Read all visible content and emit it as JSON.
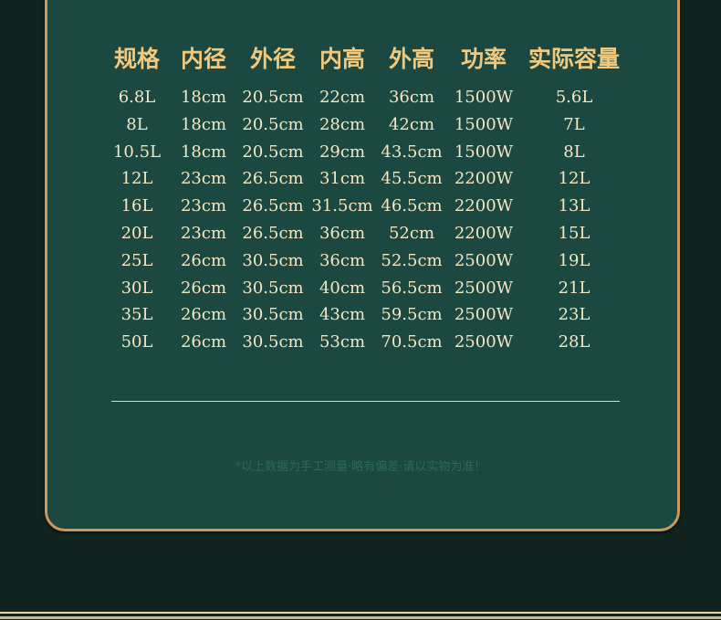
{
  "colors": {
    "background": "#10231f",
    "panel": "#1b4840",
    "border": "#c9995a",
    "header_text": "#f2c97c",
    "body_text": "#f5e6c3",
    "note_text": "#2c6a57"
  },
  "table": {
    "headers": [
      "规格",
      "内径",
      "外径",
      "内高",
      "外高",
      "功率",
      "实际容量"
    ],
    "rows": [
      [
        "6.8L",
        "18cm",
        "20.5cm",
        "22cm",
        "36cm",
        "1500W",
        "5.6L"
      ],
      [
        "8L",
        "18cm",
        "20.5cm",
        "28cm",
        "42cm",
        "1500W",
        "7L"
      ],
      [
        "10.5L",
        "18cm",
        "20.5cm",
        "29cm",
        "43.5cm",
        "1500W",
        "8L"
      ],
      [
        "12L",
        "23cm",
        "26.5cm",
        "31cm",
        "45.5cm",
        "2200W",
        "12L"
      ],
      [
        "16L",
        "23cm",
        "26.5cm",
        "31.5cm",
        "46.5cm",
        "2200W",
        "13L"
      ],
      [
        "20L",
        "23cm",
        "26.5cm",
        "36cm",
        "52cm",
        "2200W",
        "15L"
      ],
      [
        "25L",
        "26cm",
        "30.5cm",
        "36cm",
        "52.5cm",
        "2500W",
        "19L"
      ],
      [
        "30L",
        "26cm",
        "30.5cm",
        "40cm",
        "56.5cm",
        "2500W",
        "21L"
      ],
      [
        "35L",
        "26cm",
        "30.5cm",
        "43cm",
        "59.5cm",
        "2500W",
        "23L"
      ],
      [
        "50L",
        "26cm",
        "30.5cm",
        "53cm",
        "70.5cm",
        "2500W",
        "28L"
      ]
    ]
  },
  "note": "*以上数据为手工测量·略有偏差·请以实物为准！"
}
